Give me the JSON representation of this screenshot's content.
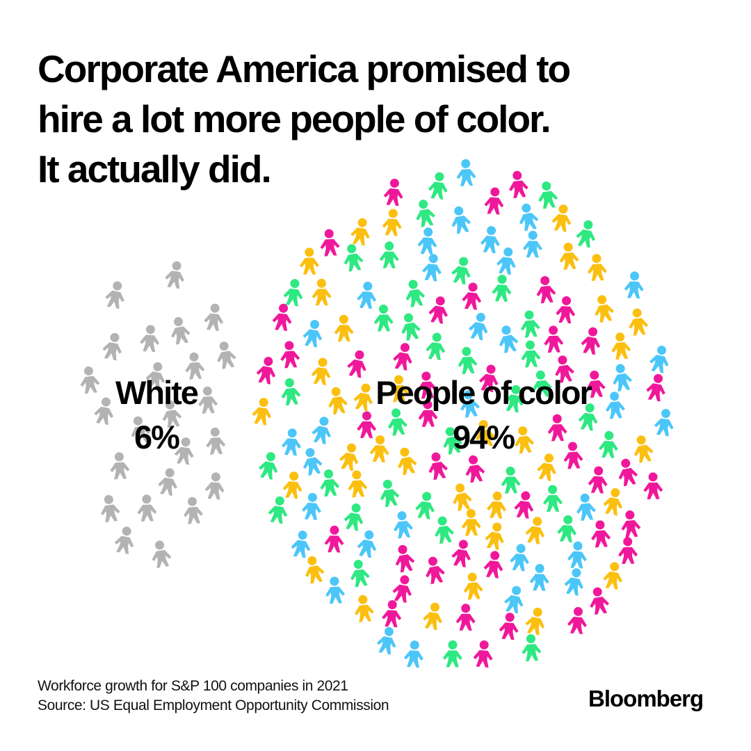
{
  "title_lines": [
    "Corporate America promised to",
    "hire a lot more people of color.",
    "It actually did."
  ],
  "chart_data": {
    "type": "pictogram",
    "title": "Corporate America promised to hire a lot more people of color. It actually did.",
    "categories": [
      "White",
      "People of color"
    ],
    "values": [
      6,
      94
    ],
    "unit": "%",
    "labels": [
      {
        "name": "White",
        "value_label": "6%"
      },
      {
        "name": "People of color",
        "value_label": "94%"
      }
    ],
    "colors": {
      "white_group": "#b3b3b3",
      "poc_palette": [
        "#2ee881",
        "#f0189a",
        "#fbbf10",
        "#4cc6f8"
      ]
    }
  },
  "footer": {
    "note": "Workforce growth for S&P 100 companies in 2021",
    "source": "Source: US Equal Employment Opportunity Commission"
  },
  "brand": "Bloomberg"
}
